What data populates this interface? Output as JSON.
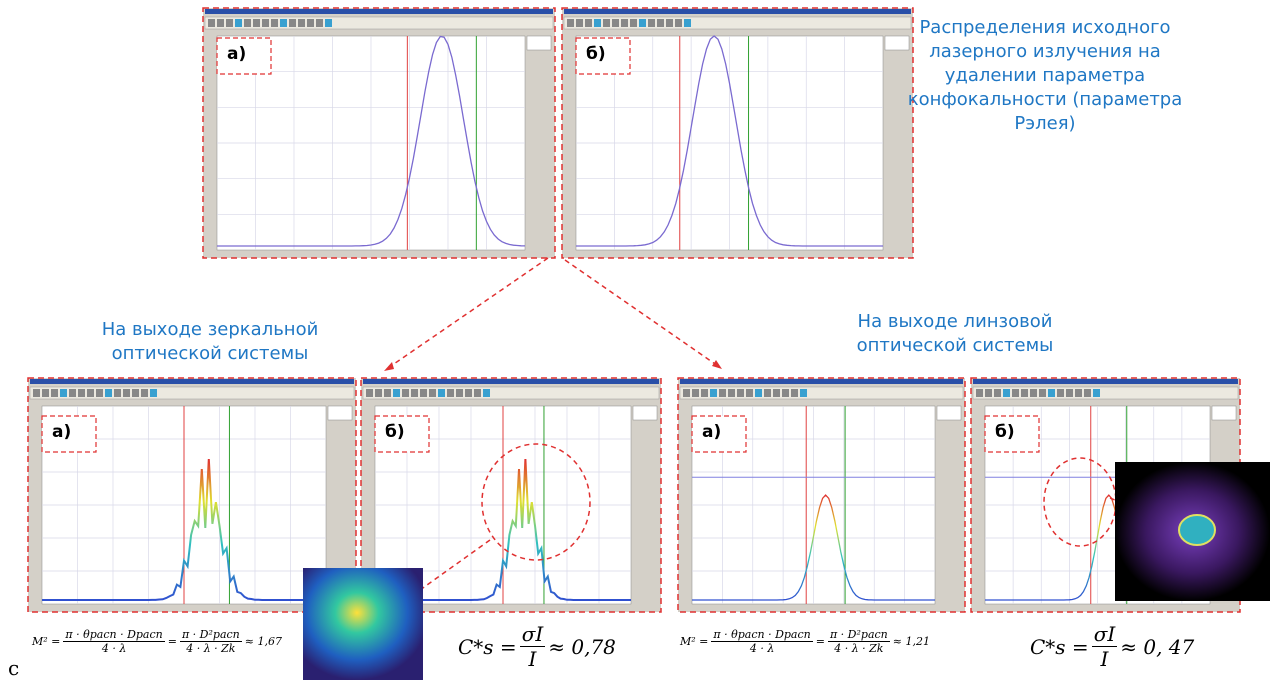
{
  "caption_top": "Распределения исходного лазерного излучения на удалении параметра конфокальности (параметра Рэлея)",
  "caption_mirror": "На выходе зеркальной оптической системы",
  "caption_lens": "На выходе линзовой оптической системы",
  "panels": [
    {
      "label": "а)"
    },
    {
      "label": "б)"
    },
    {
      "label": "а)"
    },
    {
      "label": "б)"
    },
    {
      "label": "а)"
    },
    {
      "label": "б)"
    }
  ],
  "formulas": [
    {
      "lhs": "M² =",
      "num1": "π · θрасп · Dрасп",
      "den1": "4 · λ",
      "eq": "=",
      "num2": "π · D²расп",
      "den2": "4 · λ · Zk",
      "result": "≈ 1,67"
    },
    {
      "lhs": "C*s =",
      "num": "σI",
      "den": "I",
      "result": "≈ 0,78"
    },
    {
      "lhs": "M² =",
      "num1": "π · θрасп · Dрасп",
      "den1": "4 · λ",
      "eq": "=",
      "num2": "π · D²расп",
      "den2": "4 · λ · Zk",
      "result": "≈ 1,21"
    },
    {
      "lhs": "C*s =",
      "num": "σI",
      "den": "I",
      "result": "≈ 0, 47"
    }
  ],
  "corner_letter": "с"
}
